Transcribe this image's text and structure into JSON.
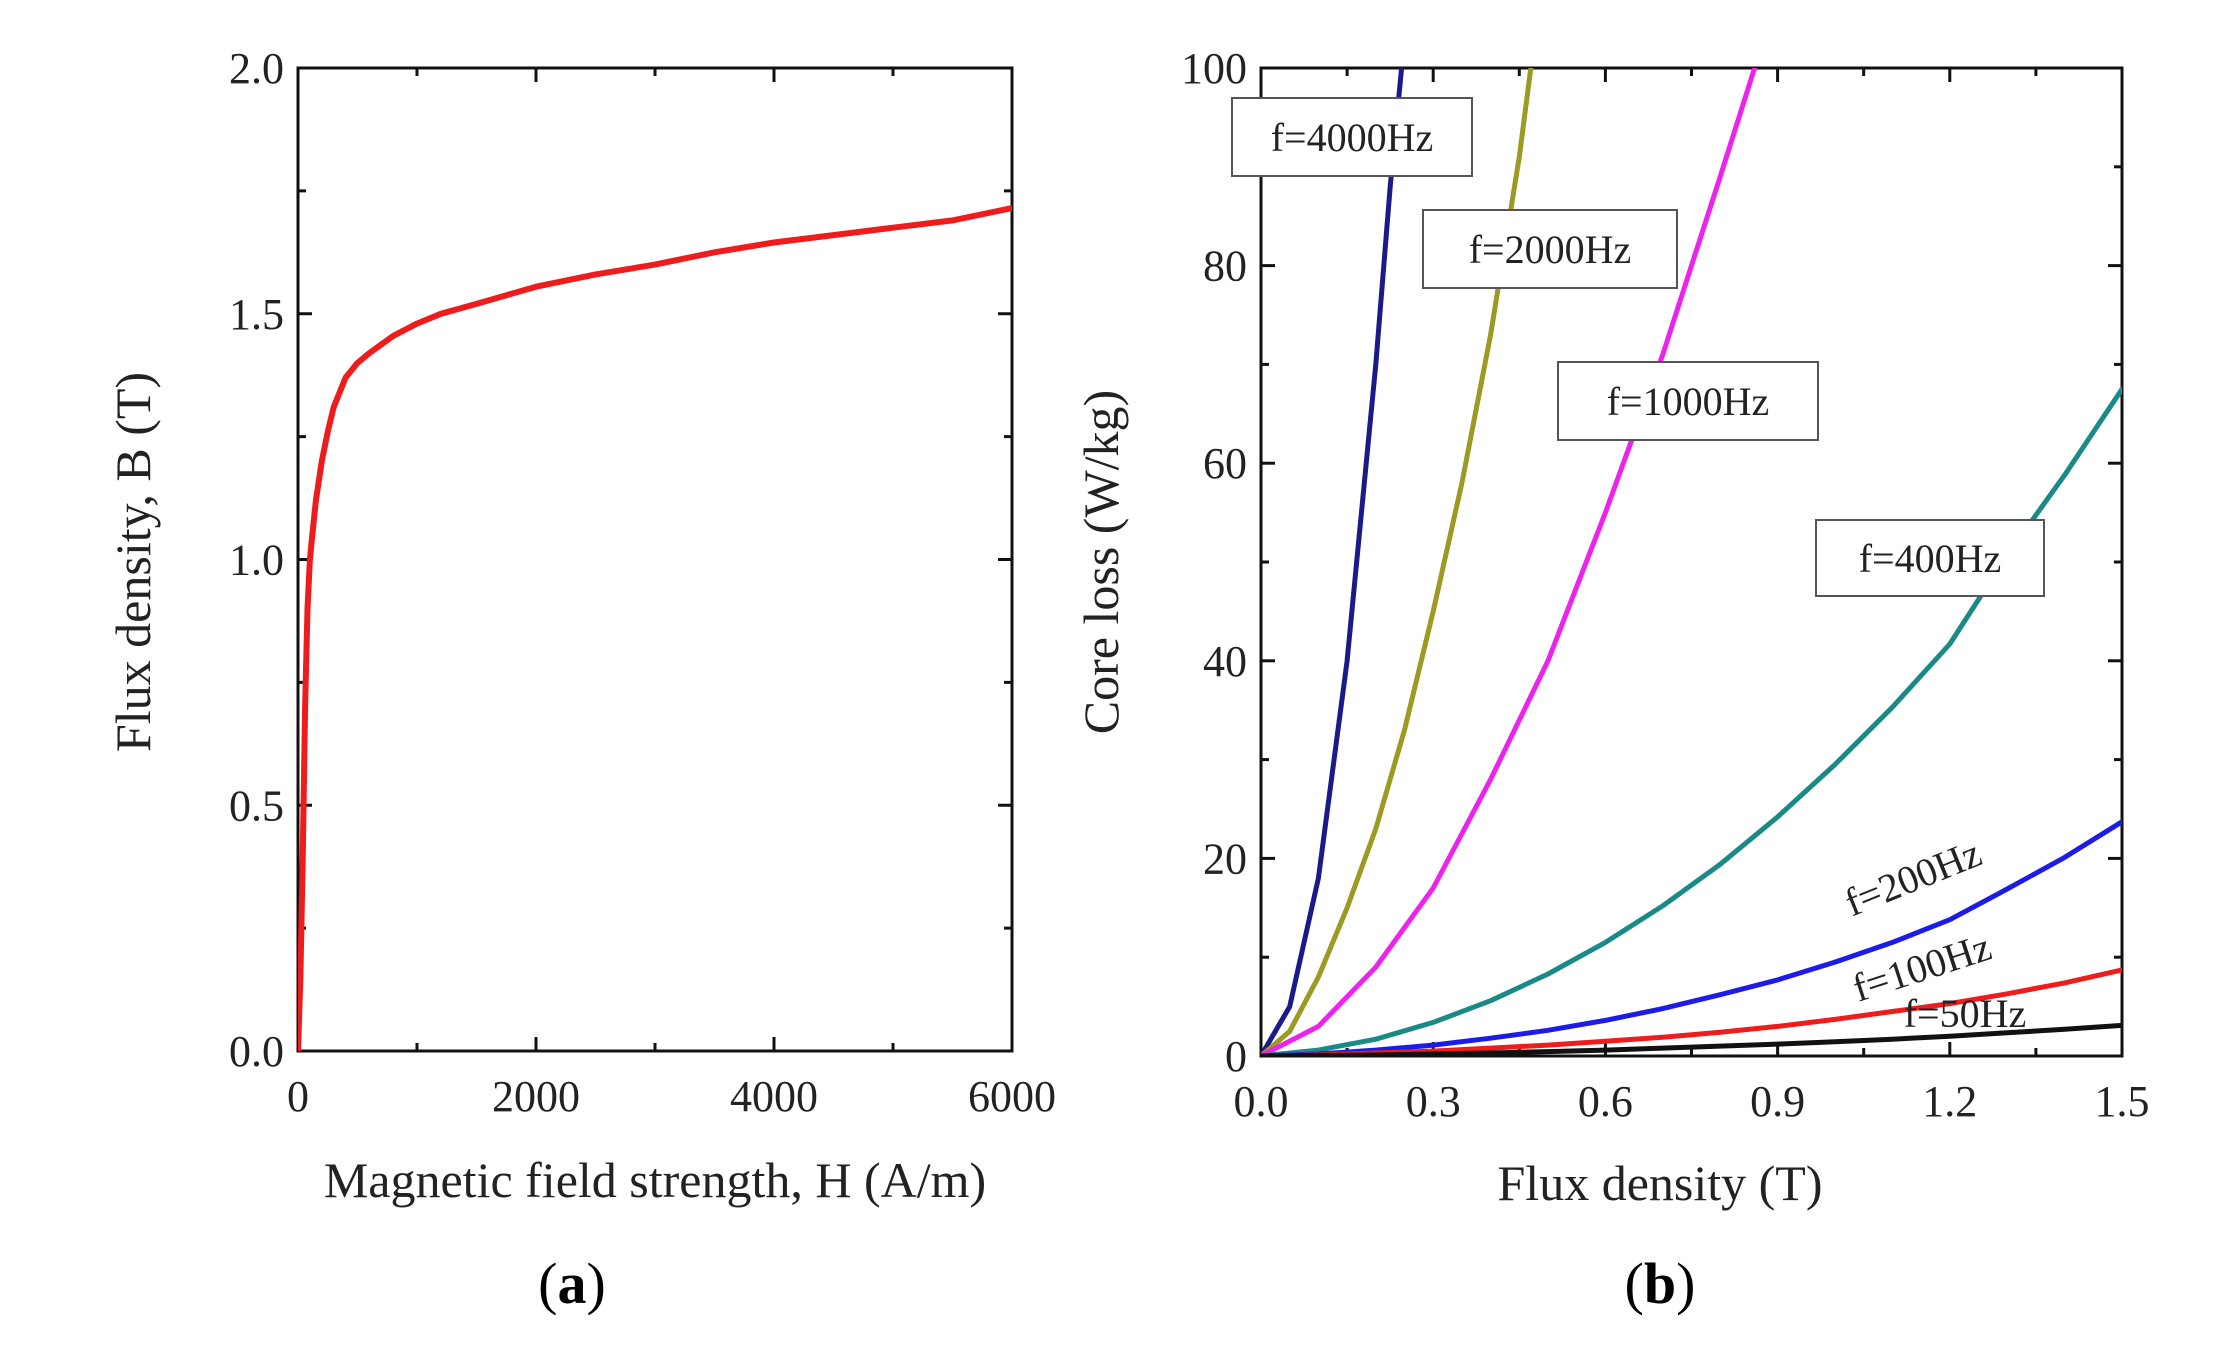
{
  "panel_a_label": "a",
  "panel_b_label": "b",
  "chart_data": [
    {
      "type": "line",
      "title": "",
      "xlabel": "Magnetic field strength, H (A/m)",
      "ylabel": "Flux density, B (T)",
      "xlim": [
        0,
        6000
      ],
      "ylim": [
        0,
        2.0
      ],
      "xticks": [
        "0",
        "2000",
        "4000",
        "6000"
      ],
      "yticks": [
        "0.0",
        "0.5",
        "1.0",
        "1.5",
        "2.0"
      ],
      "grid": false,
      "series": [
        {
          "name": "B-H curve",
          "color": "#ee1c1c",
          "x": [
            0,
            20,
            40,
            60,
            80,
            100,
            120,
            150,
            200,
            250,
            300,
            400,
            500,
            600,
            800,
            1000,
            1200,
            1500,
            2000,
            2500,
            3000,
            3500,
            4000,
            4500,
            5000,
            5500,
            6000
          ],
          "y": [
            0.0,
            0.15,
            0.4,
            0.7,
            0.9,
            1.0,
            1.05,
            1.12,
            1.2,
            1.26,
            1.31,
            1.37,
            1.4,
            1.42,
            1.455,
            1.48,
            1.5,
            1.52,
            1.555,
            1.58,
            1.6,
            1.625,
            1.645,
            1.66,
            1.675,
            1.69,
            1.715
          ]
        }
      ]
    },
    {
      "type": "line",
      "title": "",
      "xlabel": "Flux density (T)",
      "ylabel": "Core loss (W/kg)",
      "xlim": [
        0,
        1.5
      ],
      "ylim": [
        0,
        100
      ],
      "xticks": [
        "0.0",
        "0.3",
        "0.6",
        "0.9",
        "1.2",
        "1.5"
      ],
      "yticks": [
        "0",
        "20",
        "40",
        "60",
        "80",
        "100"
      ],
      "grid": false,
      "series": [
        {
          "name": "f=4000Hz",
          "color": "#1a1a8a",
          "x": [
            0,
            0.05,
            0.1,
            0.15,
            0.2,
            0.225,
            0.245
          ],
          "y": [
            0,
            5,
            18,
            40,
            70,
            88,
            100
          ]
        },
        {
          "name": "f=2000Hz",
          "color": "#9c9a22",
          "x": [
            0,
            0.05,
            0.1,
            0.15,
            0.2,
            0.25,
            0.3,
            0.35,
            0.4,
            0.45,
            0.47
          ],
          "y": [
            0,
            2.5,
            8,
            15,
            23,
            33,
            45,
            58,
            73,
            91,
            100
          ]
        },
        {
          "name": "f=1000Hz",
          "color": "#ee22ee",
          "x": [
            0,
            0.1,
            0.2,
            0.3,
            0.4,
            0.5,
            0.6,
            0.7,
            0.8,
            0.86
          ],
          "y": [
            0,
            3,
            9,
            17,
            28,
            40,
            55,
            71,
            89,
            100
          ]
        },
        {
          "name": "f=400Hz",
          "color": "#1a8a86",
          "x": [
            0,
            0.1,
            0.2,
            0.3,
            0.4,
            0.5,
            0.6,
            0.7,
            0.8,
            0.9,
            1.0,
            1.1,
            1.2,
            1.3,
            1.4,
            1.5
          ],
          "y": [
            0,
            0.6,
            1.7,
            3.4,
            5.6,
            8.3,
            11.5,
            15.2,
            19.4,
            24.2,
            29.5,
            35.3,
            41.7,
            50.7,
            58.8,
            67.5
          ]
        },
        {
          "name": "f=200Hz",
          "color": "#1c1ce6",
          "x": [
            0,
            0.1,
            0.2,
            0.3,
            0.4,
            0.5,
            0.6,
            0.7,
            0.8,
            0.9,
            1.0,
            1.1,
            1.2,
            1.3,
            1.4,
            1.5
          ],
          "y": [
            0,
            0.2,
            0.6,
            1.1,
            1.8,
            2.6,
            3.6,
            4.8,
            6.2,
            7.7,
            9.5,
            11.5,
            13.8,
            16.9,
            20.1,
            23.7
          ]
        },
        {
          "name": "f=100Hz",
          "color": "#ee1c1c",
          "x": [
            0,
            0.1,
            0.2,
            0.3,
            0.4,
            0.5,
            0.6,
            0.7,
            0.8,
            0.9,
            1.0,
            1.1,
            1.2,
            1.3,
            1.4,
            1.5
          ],
          "y": [
            0,
            0.1,
            0.3,
            0.5,
            0.8,
            1.1,
            1.5,
            1.9,
            2.4,
            3.0,
            3.7,
            4.5,
            5.3,
            6.3,
            7.4,
            8.7
          ]
        },
        {
          "name": "f=50Hz",
          "color": "#111111",
          "x": [
            0,
            0.1,
            0.2,
            0.3,
            0.4,
            0.5,
            0.6,
            0.7,
            0.8,
            0.9,
            1.0,
            1.1,
            1.2,
            1.3,
            1.4,
            1.5
          ],
          "y": [
            0,
            0.05,
            0.1,
            0.2,
            0.3,
            0.45,
            0.6,
            0.8,
            1.0,
            1.2,
            1.45,
            1.7,
            2.0,
            2.35,
            2.7,
            3.1
          ]
        }
      ],
      "labels": [
        {
          "text": "f=4000Hz",
          "boxed": true
        },
        {
          "text": "f=2000Hz",
          "boxed": true
        },
        {
          "text": "f=1000Hz",
          "boxed": true
        },
        {
          "text": "f=400Hz",
          "boxed": true
        },
        {
          "text": "f=200Hz",
          "boxed": false
        },
        {
          "text": "f=100Hz",
          "boxed": false
        },
        {
          "text": "f=50Hz",
          "boxed": false
        }
      ]
    }
  ]
}
